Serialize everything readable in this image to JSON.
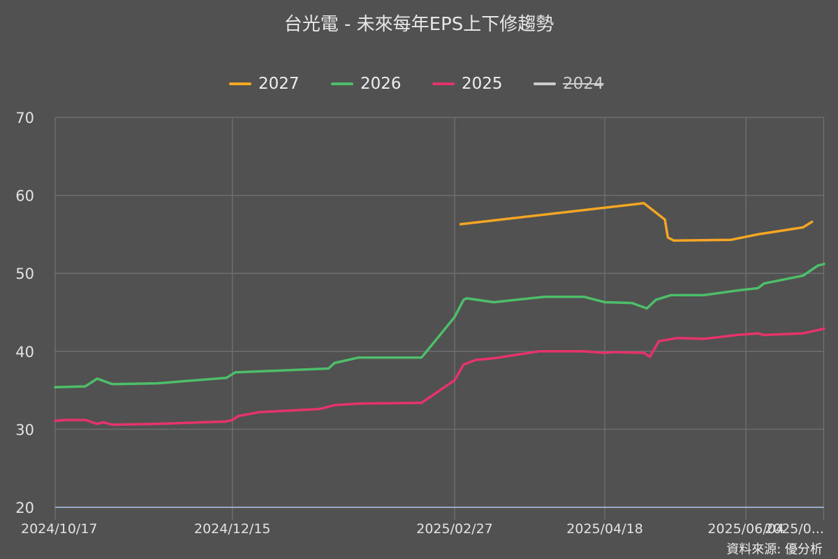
{
  "chart_data": {
    "type": "line",
    "title": "台光電 - 未來每年EPS上下修趨勢",
    "source": "資料來源: 優分析",
    "x_start": "2024/10/17",
    "x_end": "2025/06/30",
    "x_ticks": [
      "2024/10/17",
      "2024/12/15",
      "2025/02/27",
      "2025/04/18",
      "2025/06/04",
      "2025/0..."
    ],
    "y_ticks": [
      20,
      30,
      40,
      50,
      60,
      70
    ],
    "ylim": [
      20,
      70
    ],
    "grid": true,
    "legend_position": "top-center",
    "series": [
      {
        "name": "2027",
        "color": "#f5a623",
        "visible": true,
        "points": [
          [
            "2025/03/01",
            56.3
          ],
          [
            "2025/05/01",
            59.0
          ],
          [
            "2025/05/08",
            56.9
          ],
          [
            "2025/05/09",
            54.6
          ],
          [
            "2025/05/11",
            54.2
          ],
          [
            "2025/05/30",
            54.3
          ],
          [
            "2025/06/08",
            55.0
          ],
          [
            "2025/06/23",
            55.9
          ],
          [
            "2025/06/26",
            56.6
          ]
        ]
      },
      {
        "name": "2026",
        "color": "#4dbf6a",
        "visible": true,
        "points": [
          [
            "2024/10/17",
            35.4
          ],
          [
            "2024/10/27",
            35.5
          ],
          [
            "2024/10/31",
            36.5
          ],
          [
            "2024/11/05",
            35.8
          ],
          [
            "2024/11/20",
            35.9
          ],
          [
            "2024/12/13",
            36.6
          ],
          [
            "2024/12/16",
            37.3
          ],
          [
            "2025/01/16",
            37.8
          ],
          [
            "2025/01/18",
            38.5
          ],
          [
            "2025/01/26",
            39.2
          ],
          [
            "2025/02/04",
            39.2
          ],
          [
            "2025/02/16",
            39.2
          ],
          [
            "2025/02/27",
            44.4
          ],
          [
            "2025/03/02",
            46.6
          ],
          [
            "2025/03/03",
            46.8
          ],
          [
            "2025/03/12",
            46.3
          ],
          [
            "2025/03/29",
            47.0
          ],
          [
            "2025/04/11",
            47.0
          ],
          [
            "2025/04/18",
            46.3
          ],
          [
            "2025/04/27",
            46.2
          ],
          [
            "2025/05/02",
            45.5
          ],
          [
            "2025/05/05",
            46.6
          ],
          [
            "2025/05/10",
            47.2
          ],
          [
            "2025/05/21",
            47.2
          ],
          [
            "2025/06/01",
            47.8
          ],
          [
            "2025/06/08",
            48.1
          ],
          [
            "2025/06/10",
            48.7
          ],
          [
            "2025/06/23",
            49.7
          ],
          [
            "2025/06/28",
            51.0
          ],
          [
            "2025/06/30",
            51.2
          ]
        ]
      },
      {
        "name": "2025",
        "color": "#e6336c",
        "visible": true,
        "points": [
          [
            "2024/10/17",
            31.1
          ],
          [
            "2024/10/21",
            31.2
          ],
          [
            "2024/10/27",
            31.2
          ],
          [
            "2024/10/31",
            30.7
          ],
          [
            "2024/11/02",
            30.9
          ],
          [
            "2024/11/05",
            30.6
          ],
          [
            "2024/11/20",
            30.7
          ],
          [
            "2024/12/13",
            31.0
          ],
          [
            "2024/12/15",
            31.2
          ],
          [
            "2024/12/17",
            31.7
          ],
          [
            "2024/12/24",
            32.2
          ],
          [
            "2025/01/13",
            32.6
          ],
          [
            "2025/01/18",
            33.1
          ],
          [
            "2025/01/26",
            33.3
          ],
          [
            "2025/02/16",
            33.4
          ],
          [
            "2025/02/27",
            36.3
          ],
          [
            "2025/03/02",
            38.3
          ],
          [
            "2025/03/06",
            38.9
          ],
          [
            "2025/03/12",
            39.1
          ],
          [
            "2025/03/27",
            40.0
          ],
          [
            "2025/04/11",
            40.0
          ],
          [
            "2025/04/18",
            39.8
          ],
          [
            "2025/04/21",
            39.9
          ],
          [
            "2025/05/01",
            39.8
          ],
          [
            "2025/05/03",
            39.3
          ],
          [
            "2025/05/06",
            41.3
          ],
          [
            "2025/05/12",
            41.7
          ],
          [
            "2025/05/21",
            41.6
          ],
          [
            "2025/06/01",
            42.1
          ],
          [
            "2025/06/08",
            42.3
          ],
          [
            "2025/06/10",
            42.1
          ],
          [
            "2025/06/23",
            42.3
          ],
          [
            "2025/06/30",
            42.9
          ]
        ]
      },
      {
        "name": "2024",
        "color": "#cccccc",
        "visible": false,
        "points": []
      }
    ]
  }
}
